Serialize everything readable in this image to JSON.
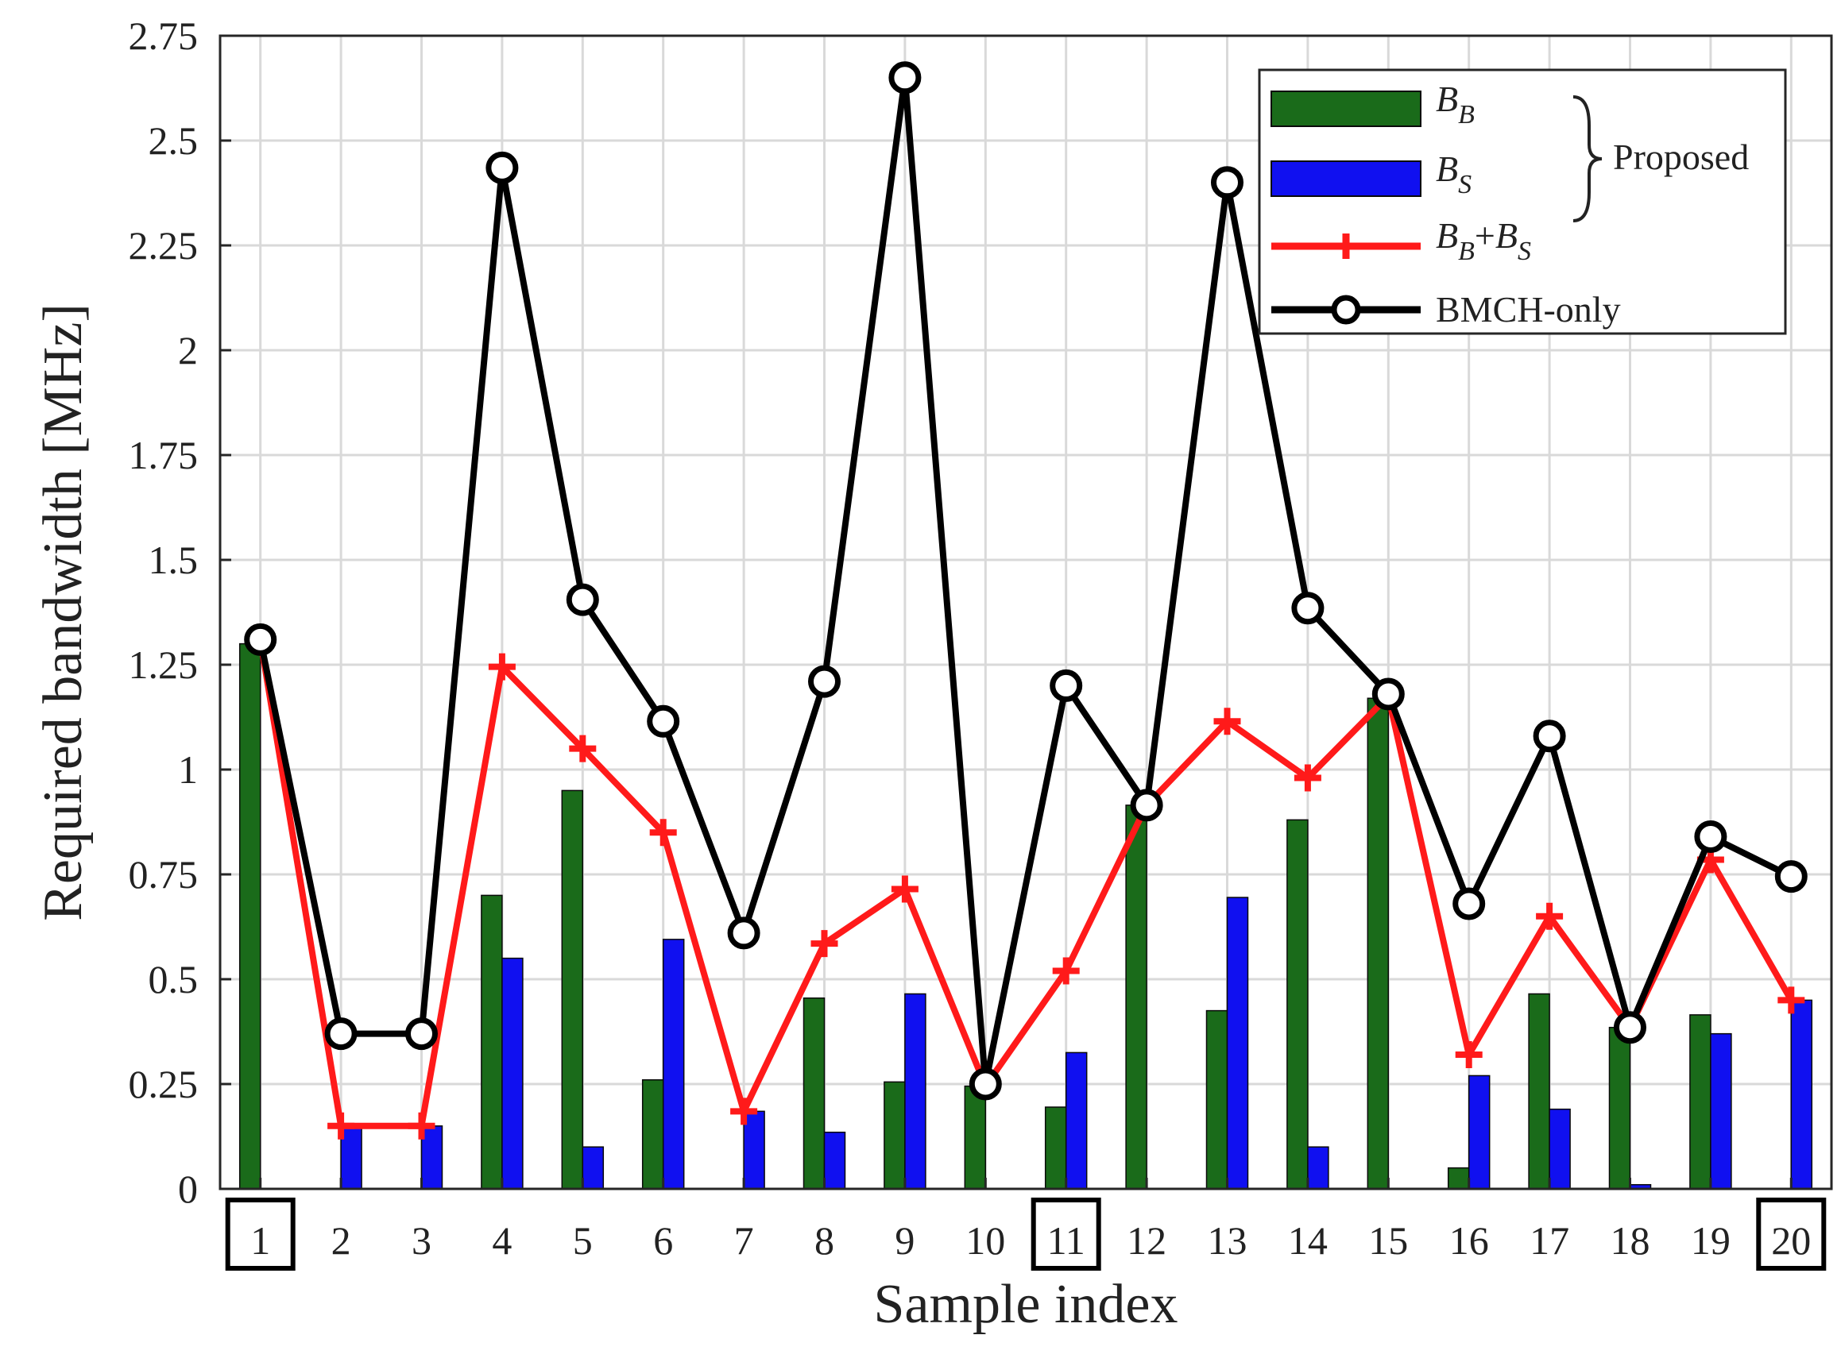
{
  "chart_data": {
    "type": "bar",
    "xlabel": "Sample index",
    "ylabel": "Required bandwidth [MHz]",
    "ylim": [
      0,
      2.75
    ],
    "yticks": [
      0,
      0.25,
      0.5,
      0.75,
      1,
      1.25,
      1.5,
      1.75,
      2,
      2.25,
      2.5,
      2.75
    ],
    "ytick_labels": [
      "0",
      "0.25",
      "0.5",
      "0.75",
      "1",
      "1.25",
      "1.5",
      "1.75",
      "2",
      "2.25",
      "2.5",
      "2.75"
    ],
    "categories": [
      "1",
      "2",
      "3",
      "4",
      "5",
      "6",
      "7",
      "8",
      "9",
      "10",
      "11",
      "12",
      "13",
      "14",
      "15",
      "16",
      "17",
      "18",
      "19",
      "20"
    ],
    "highlighted_categories": [
      "1",
      "11",
      "20"
    ],
    "grid": true,
    "legend_position": "top-right",
    "series": [
      {
        "name": "B_B",
        "kind": "bar",
        "color": "#1a6b1a",
        "values": [
          1.3,
          0,
          0,
          0.7,
          0.95,
          0.26,
          0,
          0.455,
          0.255,
          0.245,
          0.195,
          0.915,
          0.425,
          0.88,
          1.17,
          0.05,
          0.465,
          0.385,
          0.415,
          0
        ]
      },
      {
        "name": "B_S",
        "kind": "bar",
        "color": "#1010f0",
        "values": [
          0,
          0.15,
          0.15,
          0.55,
          0.1,
          0.595,
          0.185,
          0.135,
          0.465,
          0,
          0.325,
          0,
          0.695,
          0.1,
          0,
          0.27,
          0.19,
          0.01,
          0.37,
          0.45
        ]
      },
      {
        "name": "B_B+B_S",
        "kind": "line",
        "marker": "plus",
        "color": "#ff1a1a",
        "values": [
          1.31,
          0.15,
          0.15,
          1.245,
          1.05,
          0.85,
          0.185,
          0.585,
          0.715,
          0.245,
          0.52,
          0.915,
          1.115,
          0.98,
          1.175,
          0.32,
          0.65,
          0.385,
          0.785,
          0.45
        ]
      },
      {
        "name": "BMCH-only",
        "kind": "line",
        "marker": "circle",
        "color": "#000000",
        "values": [
          1.31,
          0.37,
          0.37,
          2.435,
          1.405,
          1.115,
          0.61,
          1.21,
          2.65,
          0.25,
          1.2,
          0.915,
          2.4,
          1.385,
          1.18,
          0.68,
          1.08,
          0.385,
          0.84,
          0.745
        ]
      }
    ],
    "legend": {
      "entries": [
        {
          "main": "B",
          "sub": "B"
        },
        {
          "main": "B",
          "sub": "S"
        },
        {
          "main": "B",
          "sub": "B",
          "plus": "+",
          "main2": "B",
          "sub2": "S"
        },
        {
          "text": "BMCH-only"
        }
      ],
      "group_label": "Proposed"
    }
  }
}
